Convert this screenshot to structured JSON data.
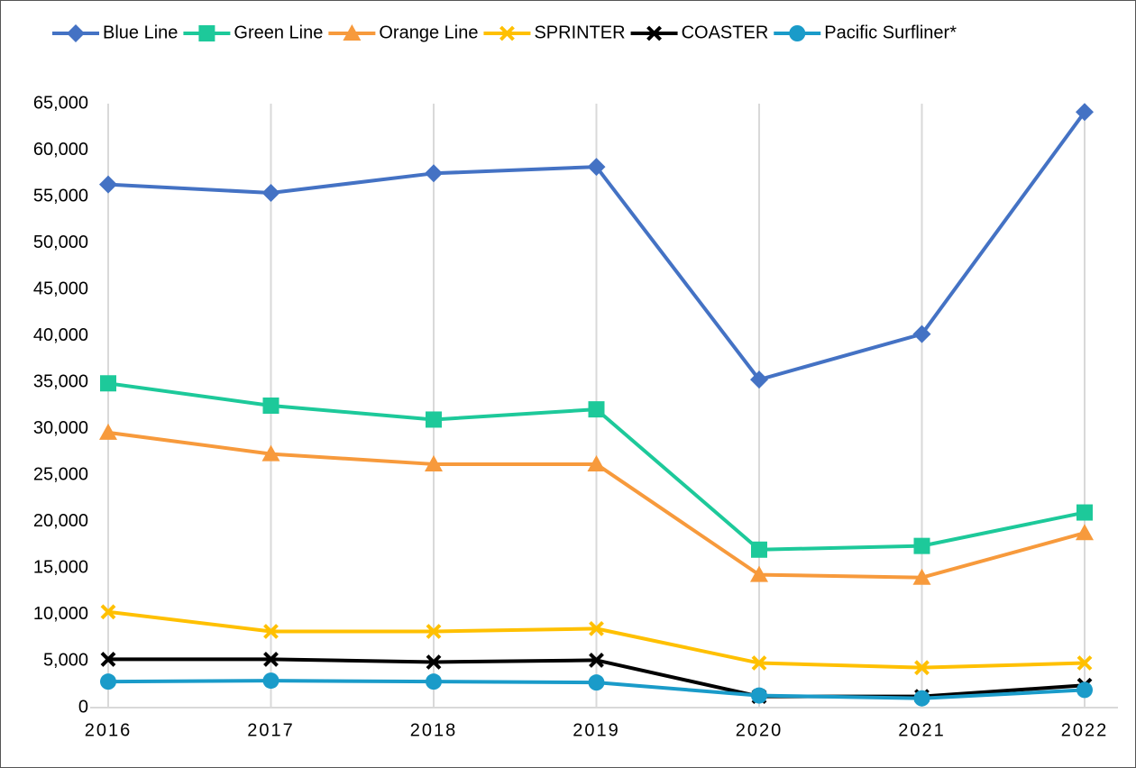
{
  "chart_data": {
    "type": "line",
    "categories": [
      "2016",
      "2017",
      "2018",
      "2019",
      "2020",
      "2021",
      "2022"
    ],
    "series": [
      {
        "name": "Blue Line",
        "color": "#4472c4",
        "marker": "diamond",
        "values": [
          56300,
          55400,
          57500,
          58200,
          35300,
          40200,
          64100
        ]
      },
      {
        "name": "Green Line",
        "color": "#1dc99a",
        "marker": "square",
        "values": [
          34900,
          32500,
          31000,
          32100,
          17000,
          17400,
          21000
        ]
      },
      {
        "name": "Orange Line",
        "color": "#f79a3c",
        "marker": "triangle",
        "values": [
          29600,
          27300,
          26200,
          26200,
          14300,
          14000,
          18800
        ]
      },
      {
        "name": "SPRINTER",
        "color": "#ffc000",
        "marker": "x",
        "values": [
          10300,
          8200,
          8200,
          8500,
          4800,
          4300,
          4800
        ]
      },
      {
        "name": "COASTER",
        "color": "#000000",
        "marker": "x",
        "values": [
          5200,
          5200,
          4900,
          5100,
          1200,
          1200,
          2400
        ]
      },
      {
        "name": "Pacific Surfliner*",
        "color": "#1a9bc9",
        "marker": "circle",
        "values": [
          2800,
          2900,
          2800,
          2700,
          1300,
          1000,
          1900
        ]
      }
    ],
    "ylim": [
      0,
      65000
    ],
    "yticks": [
      0,
      {
        "value": 5000,
        "label": "5,000"
      },
      {
        "value": 10000,
        "label": "10,000"
      },
      {
        "value": 15000,
        "label": "15,000"
      },
      {
        "value": 20000,
        "label": "20,000"
      },
      {
        "value": 25000,
        "label": "25,000"
      },
      {
        "value": 30000,
        "label": "30,000"
      },
      {
        "value": 35000,
        "label": "35,000"
      },
      {
        "value": 40000,
        "label": "40,000"
      },
      {
        "value": 45000,
        "label": "45,000"
      },
      {
        "value": 50000,
        "label": "50,000"
      },
      {
        "value": 55000,
        "label": "55,000"
      },
      {
        "value": 60000,
        "label": "60,000"
      },
      {
        "value": 65000,
        "label": "65,000"
      }
    ],
    "grid": "x",
    "legend": "top"
  }
}
